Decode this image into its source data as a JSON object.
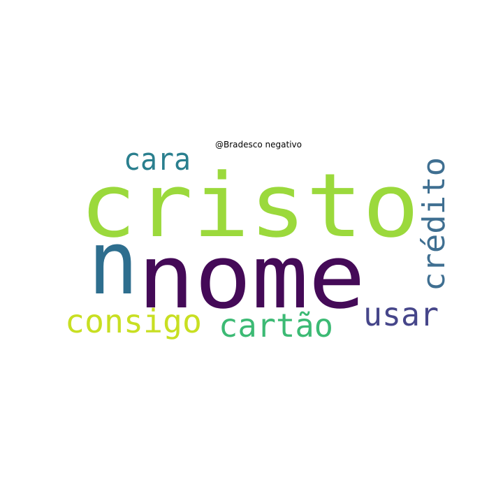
{
  "title": "@Bradesco negativo",
  "words": [
    {
      "text": "cristo",
      "color": "#9bd93c"
    },
    {
      "text": "nome",
      "color": "#440a57"
    },
    {
      "text": "n",
      "color": "#2e6e8e"
    },
    {
      "text": "crédito",
      "color": "#3f6f91"
    },
    {
      "text": "cara",
      "color": "#2a7f8e"
    },
    {
      "text": "consigo",
      "color": "#c8df22"
    },
    {
      "text": "cartão",
      "color": "#3cba74"
    },
    {
      "text": "usar",
      "color": "#46468a"
    }
  ]
}
